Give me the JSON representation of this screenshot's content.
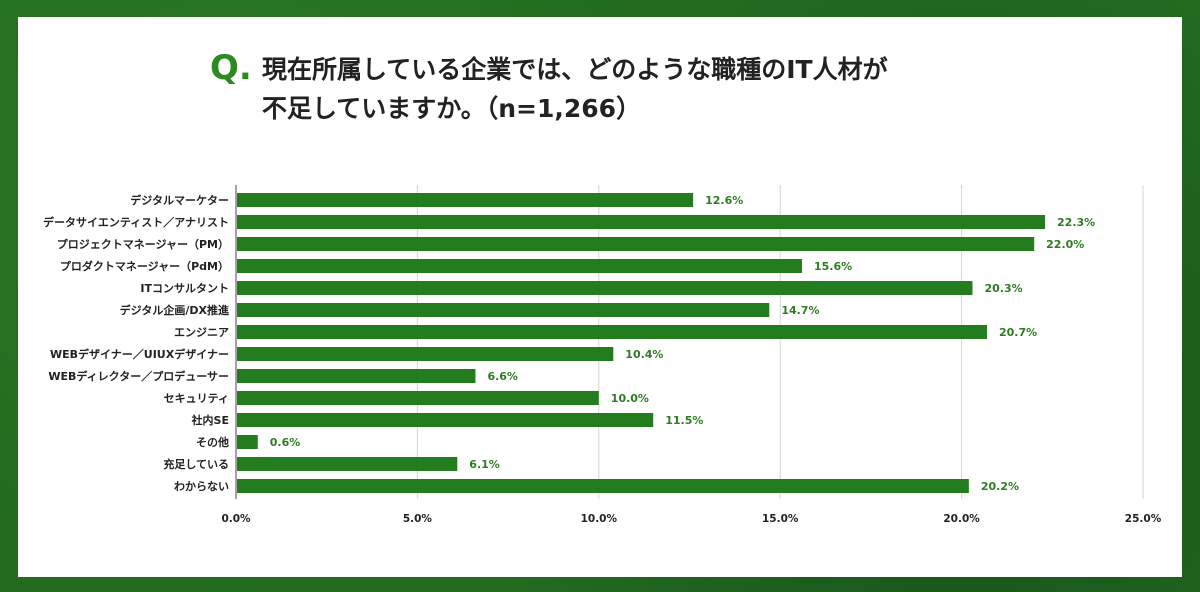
{
  "title": {
    "q_mark": "Q.",
    "line1": "現在所属している企業では、どのような職種のIT人材が",
    "line2": "不足していますか。（n=1,266）"
  },
  "colors": {
    "bar": "#237d1e",
    "value_text": "#2e7d22",
    "grid": "#d4d4d4"
  },
  "chart_data": {
    "type": "bar",
    "orientation": "horizontal",
    "categories": [
      "デジタルマーケター",
      "データサイエンティスト／アナリスト",
      "プロジェクトマネージャー（PM）",
      "プロダクトマネージャー（PdM）",
      "ITコンサルタント",
      "デジタル企画/DX推進",
      "エンジニア",
      "WEBデザイナー／UIUXデザイナー",
      "WEBディレクター／プロデューサー",
      "セキュリティ",
      "社内SE",
      "その他",
      "充足している",
      "わからない"
    ],
    "values": [
      12.6,
      22.3,
      22.0,
      15.6,
      20.3,
      14.7,
      20.7,
      10.4,
      6.6,
      10.0,
      11.5,
      0.6,
      6.1,
      20.2
    ],
    "value_labels": [
      "12.6%",
      "22.3%",
      "22.0%",
      "15.6%",
      "20.3%",
      "14.7%",
      "20.7%",
      "10.4%",
      "6.6%",
      "10.0%",
      "11.5%",
      "0.6%",
      "6.1%",
      "20.2%"
    ],
    "xticks": [
      0,
      5,
      10,
      15,
      20,
      25
    ],
    "xtick_labels": [
      "0.0%",
      "5.0%",
      "10.0%",
      "15.0%",
      "20.0%",
      "25.0%"
    ],
    "xlim": [
      0,
      25
    ],
    "grid": true
  }
}
